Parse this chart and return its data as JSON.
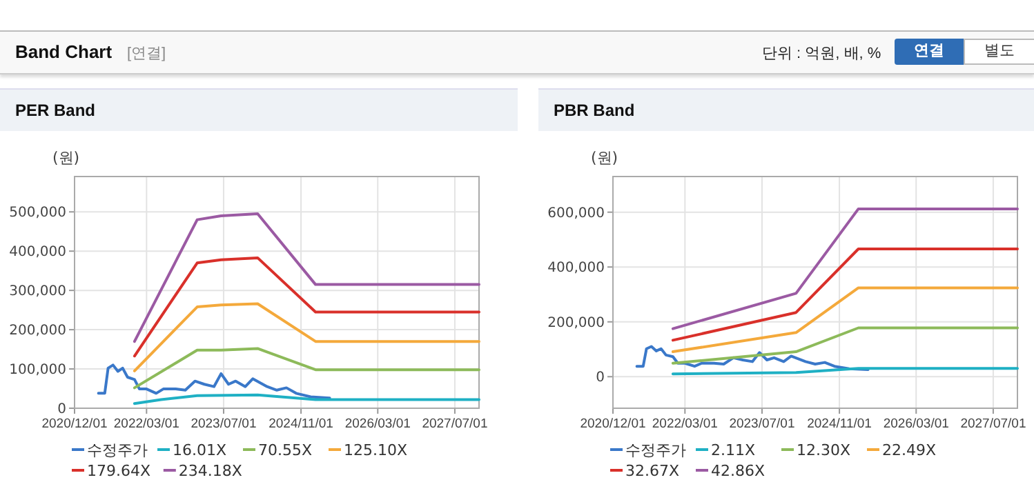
{
  "chart_data": [
    {
      "type": "other",
      "title": "Band Chart",
      "subtitle": "[연결]",
      "annotations": [
        "단위 : 억원, 배, %",
        "연결",
        "별도"
      ]
    },
    {
      "type": "line",
      "title": "PER Band",
      "ylabel": "(원)",
      "xlim": [
        "2020-12-01",
        "2027-12-01"
      ],
      "xticks": [
        {
          "value": "2020-12-01",
          "label": "2020/12/01"
        },
        {
          "value": "2022-03-01",
          "label": "2022/03/01"
        },
        {
          "value": "2023-07-01",
          "label": "2023/07/01"
        },
        {
          "value": "2024-11-01",
          "label": "2024/11/01"
        },
        {
          "value": "2026-03-01",
          "label": "2026/03/01"
        },
        {
          "value": "2027-07-01",
          "label": "2027/07/01"
        }
      ],
      "ylim": [
        0,
        590000
      ],
      "yticks": [
        0,
        {
          "value": 100000,
          "label": "100,000"
        },
        {
          "value": 200000,
          "label": "200,000"
        },
        {
          "value": 300000,
          "label": "300,000"
        },
        {
          "value": 400000,
          "label": "400,000"
        },
        {
          "value": 500000,
          "label": "500,000"
        }
      ],
      "grid": true,
      "legend": "bottom",
      "series": [
        {
          "name": "수정주가",
          "color": "#3a78c9",
          "x": [
            "2021-05-01",
            "2021-06-10",
            "2021-07-01",
            "2021-08-01",
            "2021-09-01",
            "2021-10-01",
            "2021-11-01",
            "2021-12-15",
            "2022-01-15",
            "2022-03-01",
            "2022-05-01",
            "2022-06-15",
            "2022-09-01",
            "2022-11-01",
            "2023-01-01",
            "2023-03-01",
            "2023-05-01",
            "2023-06-15",
            "2023-08-01",
            "2023-09-15",
            "2023-11-15",
            "2024-01-01",
            "2024-04-01",
            "2024-06-01",
            "2024-08-01",
            "2024-10-01",
            "2025-01-01",
            "2025-05-01"
          ],
          "values": [
            38000,
            38000,
            102000,
            110000,
            94000,
            102000,
            79000,
            73000,
            49000,
            49000,
            38000,
            49000,
            49000,
            46000,
            69000,
            61000,
            55000,
            88000,
            61000,
            69000,
            55000,
            75000,
            55000,
            46000,
            52000,
            38000,
            29000,
            26000
          ]
        },
        {
          "name": "16.01X",
          "color": "#1fb0c4",
          "x": [
            "2021-12-15",
            "2022-06-01",
            "2023-01-15",
            "2024-02-01",
            "2024-06-01",
            "2025-02-01",
            "2027-12-01"
          ],
          "values": [
            12000,
            22000,
            32000,
            34000,
            30000,
            22000,
            22000
          ]
        },
        {
          "name": "70.55X",
          "color": "#8dba5a",
          "x": [
            "2021-12-15",
            "2023-01-15",
            "2023-06-15",
            "2024-02-01",
            "2025-02-01",
            "2027-12-01"
          ],
          "values": [
            52000,
            148000,
            148000,
            152000,
            98000,
            98000
          ]
        },
        {
          "name": "125.10X",
          "color": "#f4a93b",
          "x": [
            "2021-12-15",
            "2023-01-15",
            "2023-06-15",
            "2024-02-01",
            "2025-02-01",
            "2027-12-01"
          ],
          "values": [
            95000,
            258000,
            263000,
            266000,
            170000,
            170000
          ]
        },
        {
          "name": "179.64X",
          "color": "#d9302a",
          "x": [
            "2021-12-15",
            "2023-01-15",
            "2023-06-15",
            "2024-02-01",
            "2025-02-01",
            "2027-12-01"
          ],
          "values": [
            133000,
            370000,
            378000,
            383000,
            245000,
            245000
          ]
        },
        {
          "name": "234.18X",
          "color": "#9b5aa3",
          "x": [
            "2021-12-15",
            "2023-01-15",
            "2023-06-15",
            "2024-02-01",
            "2025-02-01",
            "2027-12-01"
          ],
          "values": [
            170000,
            480000,
            490000,
            495000,
            315000,
            315000
          ]
        }
      ]
    },
    {
      "type": "line",
      "title": "PBR Band",
      "ylabel": "(원)",
      "xlim": [
        "2020-12-01",
        "2027-12-01"
      ],
      "xticks": [
        {
          "value": "2020-12-01",
          "label": "2020/12/01"
        },
        {
          "value": "2022-03-01",
          "label": "2022/03/01"
        },
        {
          "value": "2023-07-01",
          "label": "2023/07/01"
        },
        {
          "value": "2024-11-01",
          "label": "2024/11/01"
        },
        {
          "value": "2026-03-01",
          "label": "2026/03/01"
        },
        {
          "value": "2027-07-01",
          "label": "2027/07/01"
        }
      ],
      "ylim": [
        -115000,
        730000
      ],
      "yticks": [
        0,
        {
          "value": 200000,
          "label": "200,000"
        },
        {
          "value": 400000,
          "label": "400,000"
        },
        {
          "value": 600000,
          "label": "600,000"
        }
      ],
      "grid": true,
      "legend": "bottom",
      "series": [
        {
          "name": "수정주가",
          "color": "#3a78c9",
          "x": [
            "2021-05-01",
            "2021-06-10",
            "2021-07-01",
            "2021-08-01",
            "2021-09-01",
            "2021-10-01",
            "2021-11-01",
            "2021-12-15",
            "2022-01-15",
            "2022-03-01",
            "2022-05-01",
            "2022-06-15",
            "2022-09-01",
            "2022-11-01",
            "2023-01-01",
            "2023-03-01",
            "2023-05-01",
            "2023-06-15",
            "2023-08-01",
            "2023-09-15",
            "2023-11-15",
            "2024-01-01",
            "2024-04-01",
            "2024-06-01",
            "2024-08-01",
            "2024-10-01",
            "2025-01-01",
            "2025-05-01"
          ],
          "values": [
            38000,
            38000,
            102000,
            110000,
            94000,
            102000,
            79000,
            73000,
            49000,
            49000,
            38000,
            49000,
            49000,
            46000,
            69000,
            61000,
            55000,
            88000,
            61000,
            69000,
            55000,
            75000,
            55000,
            46000,
            52000,
            38000,
            29000,
            26000
          ]
        },
        {
          "name": "2.11X",
          "color": "#1fb0c4",
          "x": [
            "2021-12-15",
            "2024-02-01",
            "2025-03-01",
            "2027-12-01"
          ],
          "values": [
            10000,
            15000,
            30000,
            30000
          ]
        },
        {
          "name": "12.30X",
          "color": "#8dba5a",
          "x": [
            "2021-12-15",
            "2024-02-01",
            "2025-03-01",
            "2027-12-01"
          ],
          "values": [
            49000,
            91000,
            178000,
            178000
          ]
        },
        {
          "name": "22.49X",
          "color": "#f4a93b",
          "x": [
            "2021-12-15",
            "2024-02-01",
            "2025-03-01",
            "2027-12-01"
          ],
          "values": [
            91000,
            161000,
            324000,
            324000
          ]
        },
        {
          "name": "32.67X",
          "color": "#d9302a",
          "x": [
            "2021-12-15",
            "2024-02-01",
            "2025-03-01",
            "2027-12-01"
          ],
          "values": [
            133000,
            234000,
            466000,
            466000
          ]
        },
        {
          "name": "42.86X",
          "color": "#9b5aa3",
          "x": [
            "2021-12-15",
            "2024-02-01",
            "2025-03-01",
            "2027-12-01"
          ],
          "values": [
            175000,
            304000,
            612000,
            612000
          ]
        }
      ]
    }
  ]
}
